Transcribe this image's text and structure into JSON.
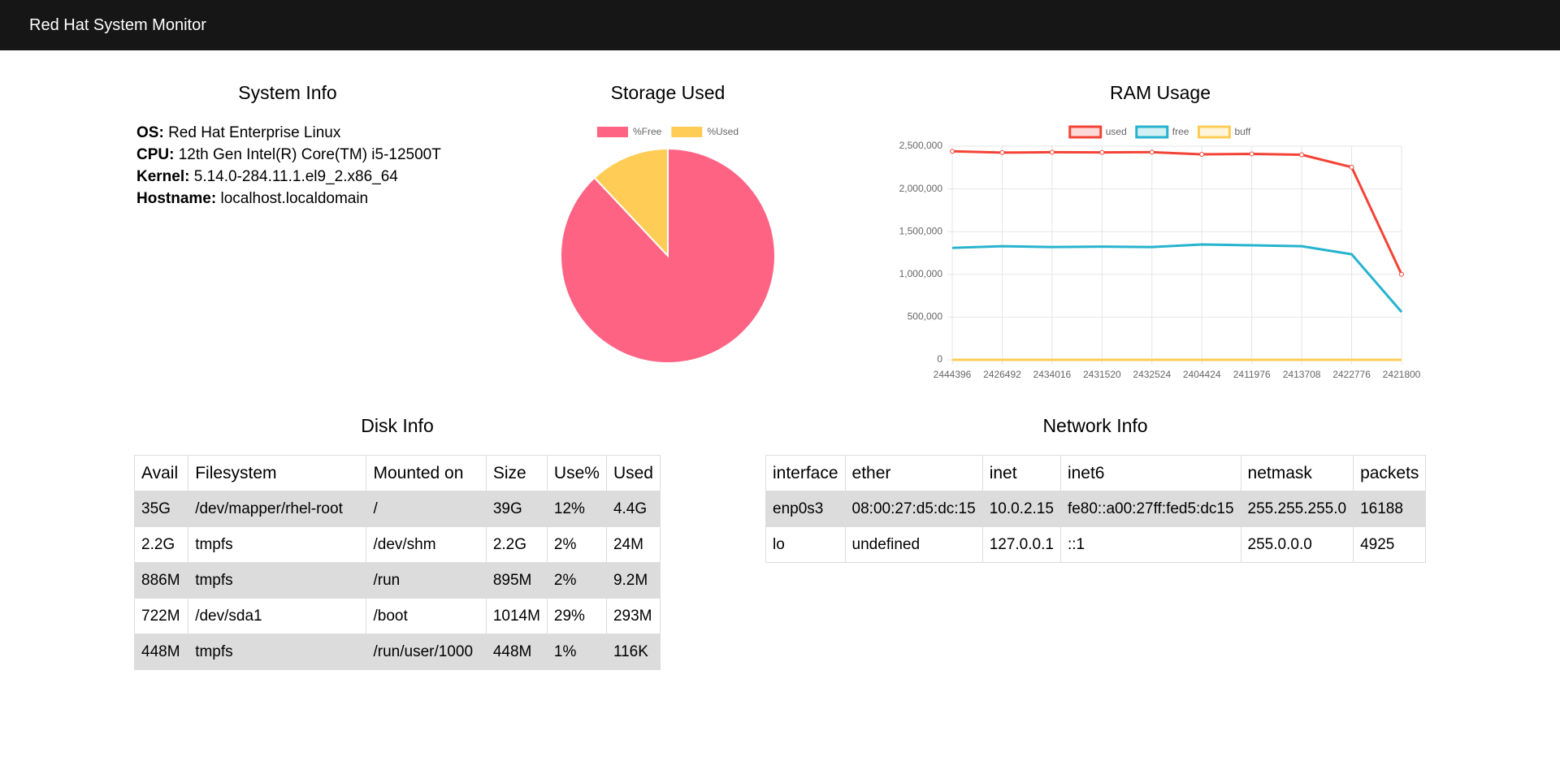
{
  "header": {
    "title": "Red Hat System Monitor"
  },
  "system_info": {
    "title": "System Info",
    "items": [
      {
        "label": "OS:",
        "value": "Red Hat Enterprise Linux"
      },
      {
        "label": "CPU:",
        "value": "12th Gen Intel(R) Core(TM) i5-12500T"
      },
      {
        "label": "Kernel:",
        "value": "5.14.0-284.11.1.el9_2.x86_64"
      },
      {
        "label": "Hostname:",
        "value": "localhost.localdomain"
      }
    ]
  },
  "chart_data": [
    {
      "type": "pie",
      "title": "Storage Used",
      "categories": [
        "%Free",
        "%Used"
      ],
      "values": [
        88,
        12
      ],
      "colors": [
        "#ff6384",
        "#ffcd56"
      ],
      "legend": "top"
    },
    {
      "type": "line",
      "title": "RAM Usage",
      "categories": [
        "2444396",
        "2426492",
        "2434016",
        "2431520",
        "2432524",
        "2404424",
        "2411976",
        "2413708",
        "2422776",
        "2421800"
      ],
      "series": [
        {
          "name": "used",
          "color": "#f44336",
          "values": [
            2440000,
            2425000,
            2430000,
            2428000,
            2430000,
            2405000,
            2410000,
            2400000,
            2255000,
            1000000
          ]
        },
        {
          "name": "free",
          "color": "#26b3ce",
          "values": [
            1310000,
            1330000,
            1320000,
            1325000,
            1320000,
            1350000,
            1340000,
            1330000,
            1235000,
            560000
          ]
        },
        {
          "name": "buff",
          "color": "#ffcd56",
          "values": [
            0,
            0,
            0,
            0,
            0,
            0,
            0,
            0,
            0,
            0
          ]
        }
      ],
      "ylim": [
        0,
        2500000
      ],
      "yticks": [
        0,
        {
          "value": 500000,
          "label": "500,000"
        },
        {
          "value": 1000000,
          "label": "1,000,000"
        },
        {
          "value": 1500000,
          "label": "1,500,000"
        },
        {
          "value": 2000000,
          "label": "2,000,000"
        },
        {
          "value": 2500000,
          "label": "2,500,000"
        }
      ],
      "grid": true,
      "legend": "top"
    }
  ],
  "disk_info": {
    "title": "Disk Info",
    "columns": [
      "Avail",
      "Filesystem",
      "Mounted on",
      "Size",
      "Use%",
      "Used"
    ],
    "rows": [
      [
        "35G",
        "/dev/mapper/rhel-root",
        "/",
        "39G",
        "12%",
        "4.4G"
      ],
      [
        "2.2G",
        "tmpfs",
        "/dev/shm",
        "2.2G",
        "2%",
        "24M"
      ],
      [
        "886M",
        "tmpfs",
        "/run",
        "895M",
        "2%",
        "9.2M"
      ],
      [
        "722M",
        "/dev/sda1",
        "/boot",
        "1014M",
        "29%",
        "293M"
      ],
      [
        "448M",
        "tmpfs",
        "/run/user/1000",
        "448M",
        "1%",
        "116K"
      ]
    ]
  },
  "network_info": {
    "title": "Network Info",
    "columns": [
      "interface",
      "ether",
      "inet",
      "inet6",
      "netmask",
      "packets"
    ],
    "rows": [
      [
        "enp0s3",
        "08:00:27:d5:dc:15",
        "10.0.2.15",
        "fe80::a00:27ff:fed5:dc15",
        "255.255.255.0",
        "16188"
      ],
      [
        "lo",
        "undefined",
        "127.0.0.1",
        "::1",
        "255.0.0.0",
        "4925"
      ]
    ]
  }
}
